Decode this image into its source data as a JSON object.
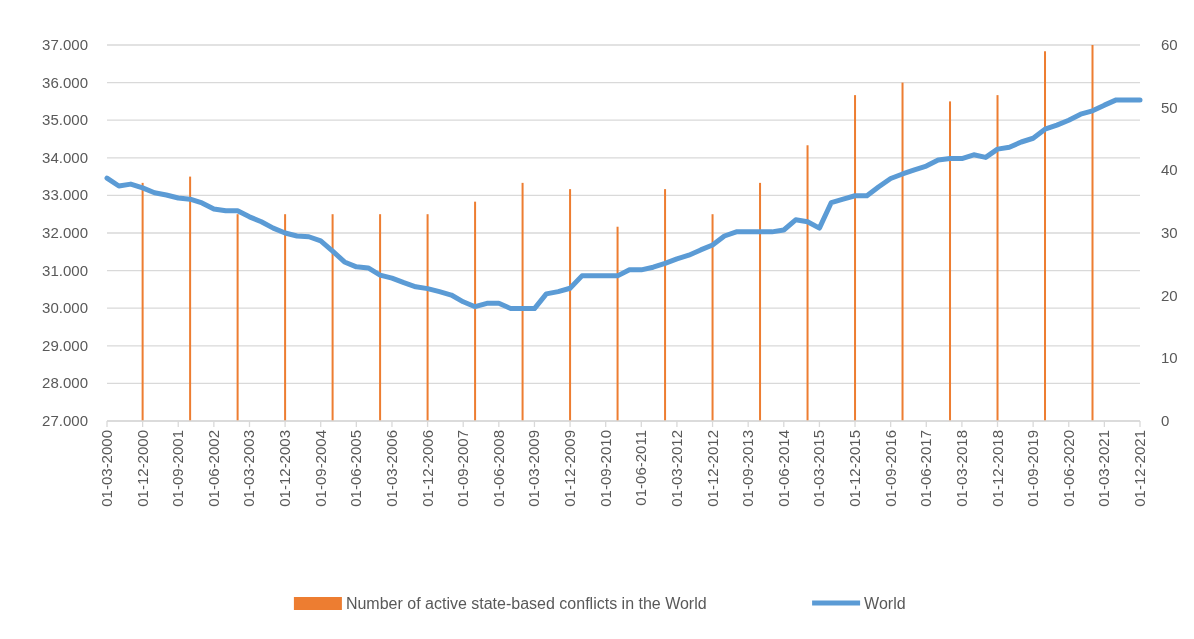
{
  "chart_data": {
    "type": "bar",
    "categories": [
      "01-03-2000",
      null,
      null,
      "01-12-2000",
      null,
      null,
      "01-09-2001",
      null,
      null,
      "01-06-2002",
      null,
      null,
      "01-03-2003",
      null,
      null,
      "01-12-2003",
      null,
      null,
      "01-09-2004",
      null,
      null,
      "01-06-2005",
      null,
      null,
      "01-03-2006",
      null,
      null,
      "01-12-2006",
      null,
      null,
      "01-09-2007",
      null,
      null,
      "01-06-2008",
      null,
      null,
      "01-03-2009",
      null,
      null,
      "01-12-2009",
      null,
      null,
      "01-09-2010",
      null,
      null,
      "01-06-2011",
      null,
      null,
      "01-03-2012",
      null,
      null,
      "01-12-2012",
      null,
      null,
      "01-09-2013",
      null,
      null,
      "01-06-2014",
      null,
      null,
      "01-03-2015",
      null,
      null,
      "01-12-2015",
      null,
      null,
      "01-09-2016",
      null,
      null,
      "01-06-2017",
      null,
      null,
      "01-03-2018",
      null,
      null,
      "01-12-2018",
      null,
      null,
      "01-09-2019",
      null,
      null,
      "01-06-2020",
      null,
      null,
      "01-03-2021",
      null,
      null,
      "01-12-2021"
    ],
    "series": [
      {
        "name": "Number of active state-based conflicts in the World",
        "axis": "y2",
        "color": "#ed7d31",
        "values": [
          null,
          null,
          null,
          38,
          null,
          null,
          null,
          39,
          null,
          null,
          null,
          33,
          null,
          null,
          null,
          33,
          null,
          null,
          null,
          33,
          null,
          null,
          null,
          33,
          null,
          null,
          null,
          33,
          null,
          null,
          null,
          35,
          null,
          null,
          null,
          38,
          null,
          null,
          null,
          37,
          null,
          null,
          null,
          31,
          null,
          null,
          null,
          37,
          null,
          null,
          null,
          33,
          null,
          null,
          null,
          38,
          null,
          null,
          null,
          44,
          null,
          null,
          null,
          52,
          null,
          null,
          null,
          54,
          null,
          null,
          null,
          51,
          null,
          null,
          null,
          52,
          null,
          null,
          null,
          59,
          null,
          null,
          null,
          60,
          null,
          null,
          null,
          null
        ]
      },
      {
        "name": "World",
        "type": "line",
        "color": "#5b9bd5",
        "values": [
          33460,
          33250,
          33300,
          33200,
          33070,
          33010,
          32930,
          32900,
          32800,
          32640,
          32590,
          32590,
          32430,
          32300,
          32130,
          32000,
          31920,
          31900,
          31790,
          31520,
          31230,
          31100,
          31070,
          30880,
          30800,
          30680,
          30570,
          30520,
          30440,
          30350,
          30170,
          30040,
          30130,
          30130,
          29990,
          29990,
          29990,
          30380,
          30440,
          30530,
          30860,
          30860,
          30860,
          30860,
          31020,
          31020,
          31090,
          31190,
          31310,
          31410,
          31550,
          31680,
          31920,
          32030,
          32030,
          32030,
          32030,
          32080,
          32350,
          32300,
          32130,
          32810,
          32900,
          32990,
          32990,
          33230,
          33450,
          33570,
          33680,
          33780,
          33940,
          33980,
          33980,
          34080,
          34010,
          34230,
          34280,
          34420,
          34520,
          34760,
          34870,
          35000,
          35160,
          35250,
          35400,
          35540,
          35540,
          35540
        ]
      }
    ],
    "ylim": [
      27000,
      37000
    ],
    "yticks": [
      {
        "value": 27000,
        "label": "27.000"
      },
      {
        "value": 28000,
        "label": "28.000"
      },
      {
        "value": 29000,
        "label": "29.000"
      },
      {
        "value": 30000,
        "label": "30.000"
      },
      {
        "value": 31000,
        "label": "31.000"
      },
      {
        "value": 32000,
        "label": "32.000"
      },
      {
        "value": 33000,
        "label": "33.000"
      },
      {
        "value": 34000,
        "label": "34.000"
      },
      {
        "value": 35000,
        "label": "35.000"
      },
      {
        "value": 36000,
        "label": "36.000"
      },
      {
        "value": 37000,
        "label": "37.000"
      }
    ],
    "y2lim": [
      0,
      60
    ],
    "y2ticks": [
      0,
      10,
      20,
      30,
      40,
      50,
      60
    ],
    "grid": "y",
    "legend": "bottom"
  }
}
